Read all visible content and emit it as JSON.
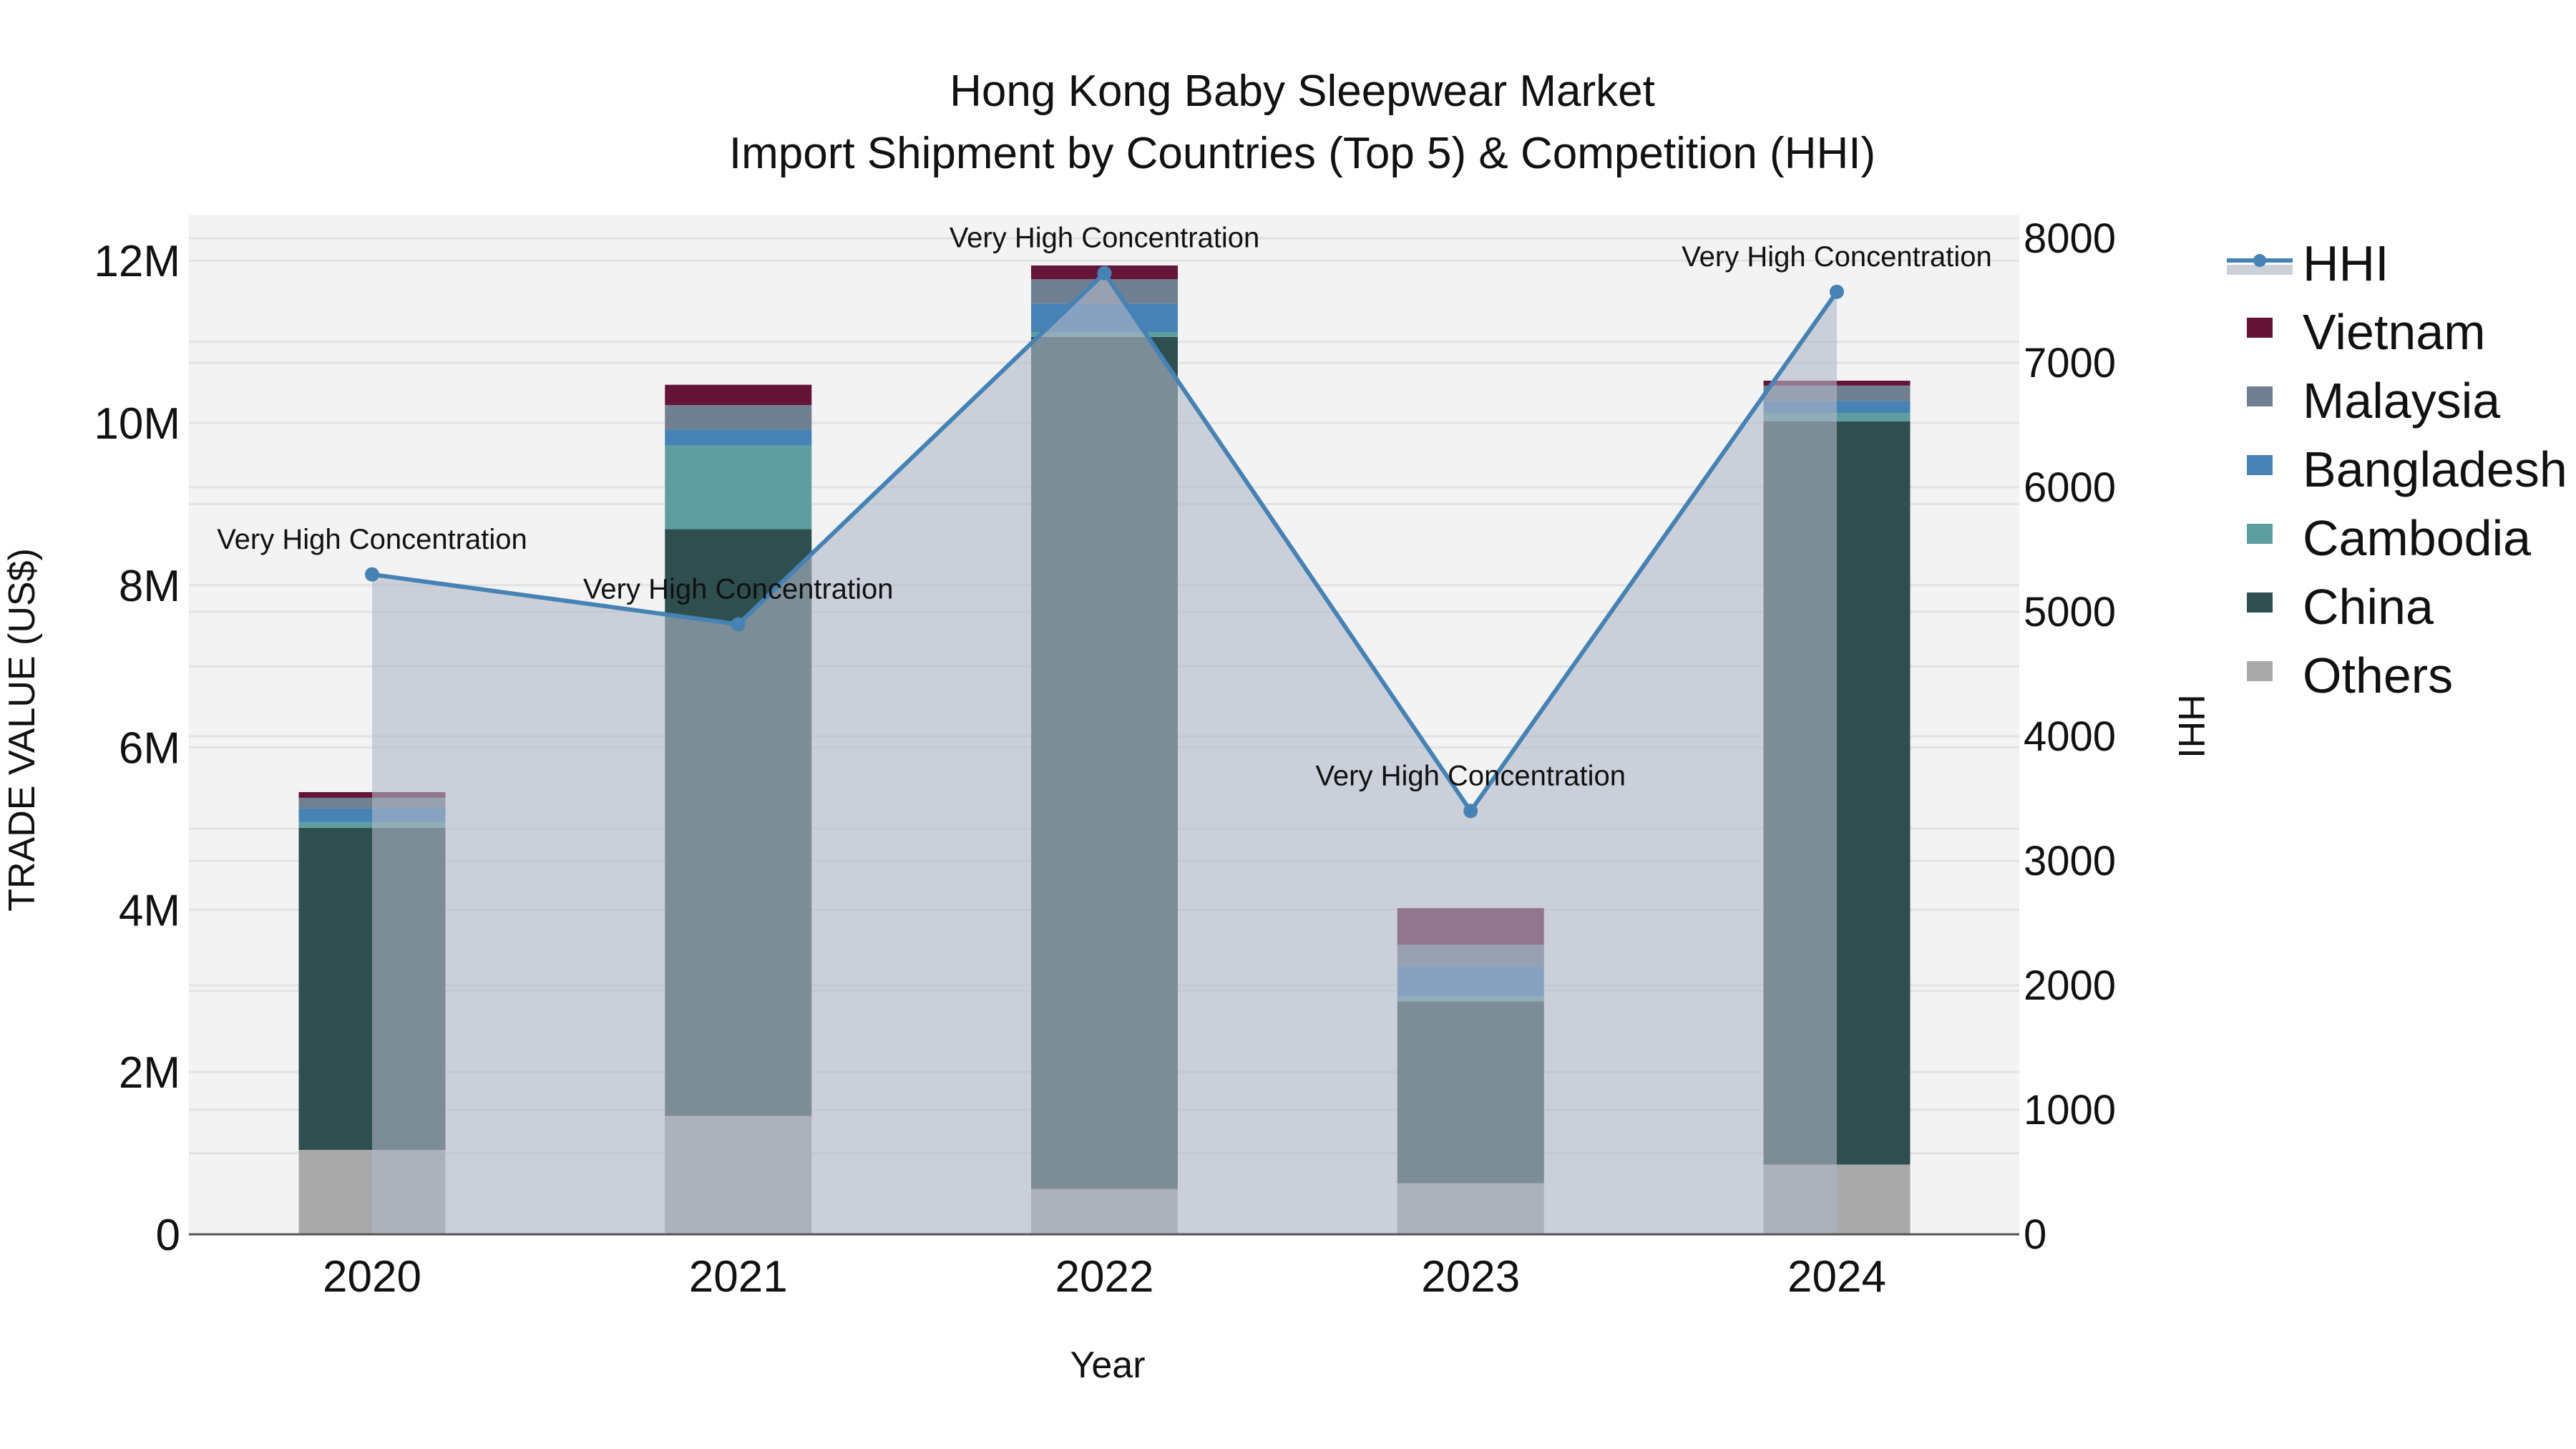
{
  "title": {
    "line1": "Hong Kong Baby Sleepwear Market",
    "line2": "Import Shipment by Countries (Top 5) & Competition (HHI)"
  },
  "axes": {
    "x_title": "Year",
    "y_left_title": "TRADE VALUE (US$)",
    "y_right_title": "HHI",
    "y_left_ticks": [
      "0",
      "2M",
      "4M",
      "6M",
      "8M",
      "10M",
      "12M"
    ],
    "y_right_ticks": [
      "0",
      "1000",
      "2000",
      "3000",
      "4000",
      "5000",
      "6000",
      "7000",
      "8000"
    ]
  },
  "legend": [
    {
      "name": "HHI",
      "type": "line",
      "color": "#4682b4"
    },
    {
      "name": "Vietnam",
      "type": "bar",
      "color": "#641436"
    },
    {
      "name": "Malaysia",
      "type": "bar",
      "color": "#708090"
    },
    {
      "name": "Bangladesh",
      "type": "bar",
      "color": "#4682b4"
    },
    {
      "name": "Cambodia",
      "type": "bar",
      "color": "#5f9ea0"
    },
    {
      "name": "China",
      "type": "bar",
      "color": "#2f4f4f"
    },
    {
      "name": "Others",
      "type": "bar",
      "color": "#a9a9a9"
    }
  ],
  "colors": {
    "plot_bg": "#f3f3f3",
    "grid": "#e2e2e2",
    "hhi_line": "#4682b4",
    "hhi_fill": "rgba(176,184,200,0.6)",
    "zero_line": "#555555"
  },
  "chart_data": {
    "type": "bar",
    "title": "Hong Kong Baby Sleepwear Market — Import Shipment by Countries (Top 5) & Competition (HHI)",
    "xlabel": "Year",
    "ylabel": "TRADE VALUE (US$)",
    "y2label": "HHI",
    "ylim": [
      0,
      12500000
    ],
    "y2lim": [
      0,
      8200
    ],
    "grid": true,
    "legend_position": "right",
    "barmode": "stack",
    "categories": [
      "2020",
      "2021",
      "2022",
      "2023",
      "2024"
    ],
    "series": [
      {
        "name": "Others",
        "type": "bar",
        "color": "#a9a9a9",
        "values": [
          1040000,
          1460000,
          560000,
          630000,
          860000
        ]
      },
      {
        "name": "China",
        "type": "bar",
        "color": "#2f4f4f",
        "values": [
          3970000,
          7230000,
          10500000,
          2240000,
          9160000
        ]
      },
      {
        "name": "Cambodia",
        "type": "bar",
        "color": "#5f9ea0",
        "values": [
          70000,
          1030000,
          60000,
          60000,
          100000
        ]
      },
      {
        "name": "Bangladesh",
        "type": "bar",
        "color": "#4682b4",
        "values": [
          170000,
          200000,
          350000,
          380000,
          150000
        ]
      },
      {
        "name": "Malaysia",
        "type": "bar",
        "color": "#708090",
        "values": [
          130000,
          300000,
          300000,
          260000,
          190000
        ]
      },
      {
        "name": "Vietnam",
        "type": "bar",
        "color": "#641436",
        "values": [
          70000,
          250000,
          170000,
          450000,
          60000
        ]
      },
      {
        "name": "HHI",
        "type": "line+area",
        "axis": "y2",
        "color": "#4682b4",
        "values": [
          5300,
          4900,
          7720,
          3400,
          7570
        ]
      }
    ],
    "annotations": [
      {
        "x": "2020",
        "text": "Very High Concentration"
      },
      {
        "x": "2021",
        "text": "Very High Concentration"
      },
      {
        "x": "2022",
        "text": "Very High Concentration"
      },
      {
        "x": "2023",
        "text": "Very High Concentration"
      },
      {
        "x": "2024",
        "text": "Very High Concentration"
      }
    ]
  }
}
